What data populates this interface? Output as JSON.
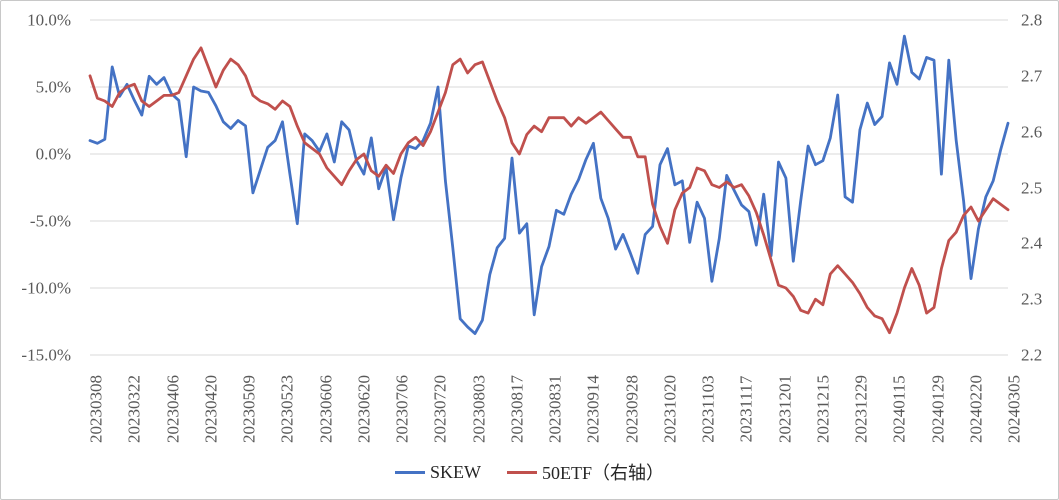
{
  "chart_data": {
    "type": "line",
    "title": "",
    "grid": "horizontal",
    "legend_position": "bottom",
    "colors": {
      "skew_blue": "#4472C4",
      "etf_red": "#C0504D",
      "gridline": "#D9D9D9",
      "axis_text": "#595959"
    },
    "x_tick_labels": [
      "20230308",
      "20230322",
      "20230406",
      "20230420",
      "20230509",
      "20230523",
      "20230606",
      "20230620",
      "20230706",
      "20230720",
      "20230803",
      "20230817",
      "20230831",
      "20230914",
      "20230928",
      "20231020",
      "20231103",
      "20231117",
      "20231201",
      "20231215",
      "20231229",
      "20240115",
      "20240129",
      "20240220",
      "20240305"
    ],
    "left_axis": {
      "tick_labels": [
        "10.0%",
        "5.0%",
        "0.0%",
        "-5.0%",
        "-10.0%",
        "-15.0%"
      ],
      "max": 10,
      "min": -15,
      "unit": "%"
    },
    "right_axis": {
      "tick_labels": [
        "2.8",
        "2.7",
        "2.6",
        "2.5",
        "2.4",
        "2.3",
        "2.2"
      ],
      "max": 2.8,
      "min": 2.2
    },
    "series": [
      {
        "name": "SKEW",
        "axis": "left",
        "color": "#4472C4",
        "values": [
          1.0,
          0.8,
          1.1,
          6.5,
          4.3,
          5.2,
          4.0,
          2.9,
          5.8,
          5.2,
          5.7,
          4.5,
          4.0,
          -0.2,
          5.0,
          4.7,
          4.6,
          3.6,
          2.4,
          1.9,
          2.5,
          2.1,
          -2.9,
          -1.2,
          0.5,
          1.0,
          2.4,
          -1.5,
          -5.2,
          1.5,
          1.0,
          0.2,
          1.5,
          -0.6,
          2.4,
          1.8,
          -0.5,
          -1.5,
          1.2,
          -2.6,
          -1.0,
          -4.9,
          -1.8,
          0.6,
          0.4,
          1.0,
          2.3,
          5.0,
          -2.0,
          -7.0,
          -12.3,
          -12.9,
          -13.4,
          -12.4,
          -9.0,
          -7.0,
          -6.3,
          -0.3,
          -5.9,
          -5.2,
          -12.0,
          -8.4,
          -6.9,
          -4.2,
          -4.5,
          -3.0,
          -1.9,
          -0.4,
          0.8,
          -3.3,
          -4.8,
          -7.1,
          -6.0,
          -7.4,
          -8.9,
          -6.0,
          -5.4,
          -0.8,
          0.4,
          -2.3,
          -2.0,
          -6.6,
          -3.6,
          -4.8,
          -9.5,
          -6.3,
          -1.6,
          -2.7,
          -3.8,
          -4.3,
          -6.8,
          -3.0,
          -7.6,
          -0.6,
          -1.8,
          -8.0,
          -3.5,
          0.6,
          -0.8,
          -0.5,
          1.2,
          4.4,
          -3.2,
          -3.6,
          1.8,
          3.8,
          2.2,
          2.8,
          6.8,
          5.2,
          8.8,
          6.1,
          5.6,
          7.2,
          7.0,
          -1.5,
          7.0,
          1.0,
          -3.5,
          -9.3,
          -5.6,
          -3.2,
          -2.0,
          0.3,
          2.3
        ]
      },
      {
        "name": "50ETF（右轴）",
        "axis": "right",
        "color": "#C0504D",
        "values": [
          2.7,
          2.66,
          2.655,
          2.645,
          2.67,
          2.68,
          2.685,
          2.655,
          2.645,
          2.655,
          2.665,
          2.665,
          2.67,
          2.7,
          2.73,
          2.75,
          2.715,
          2.68,
          2.71,
          2.73,
          2.72,
          2.7,
          2.665,
          2.655,
          2.65,
          2.64,
          2.655,
          2.645,
          2.61,
          2.58,
          2.57,
          2.56,
          2.535,
          2.52,
          2.505,
          2.53,
          2.55,
          2.56,
          2.53,
          2.52,
          2.54,
          2.525,
          2.56,
          2.58,
          2.59,
          2.575,
          2.6,
          2.635,
          2.67,
          2.72,
          2.73,
          2.705,
          2.72,
          2.725,
          2.69,
          2.655,
          2.625,
          2.58,
          2.56,
          2.595,
          2.61,
          2.6,
          2.625,
          2.625,
          2.625,
          2.61,
          2.625,
          2.615,
          2.625,
          2.635,
          2.62,
          2.605,
          2.59,
          2.59,
          2.555,
          2.555,
          2.47,
          2.43,
          2.4,
          2.46,
          2.49,
          2.5,
          2.535,
          2.53,
          2.505,
          2.5,
          2.51,
          2.5,
          2.505,
          2.485,
          2.455,
          2.415,
          2.37,
          2.325,
          2.32,
          2.305,
          2.28,
          2.275,
          2.3,
          2.29,
          2.345,
          2.36,
          2.345,
          2.33,
          2.31,
          2.285,
          2.27,
          2.265,
          2.24,
          2.275,
          2.32,
          2.355,
          2.325,
          2.275,
          2.285,
          2.355,
          2.405,
          2.42,
          2.45,
          2.465,
          2.44,
          2.46,
          2.48,
          2.47,
          2.46
        ]
      }
    ]
  }
}
